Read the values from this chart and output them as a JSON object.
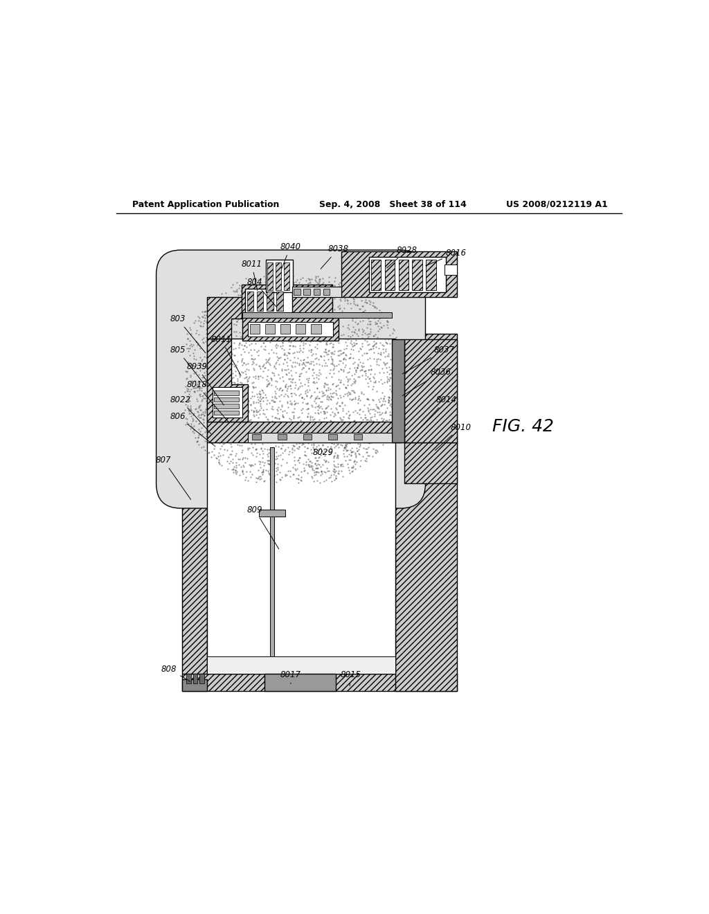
{
  "background_color": "#ffffff",
  "header_left": "Patent Application Publication",
  "header_mid": "Sep. 4, 2008   Sheet 38 of 114",
  "header_right": "US 2008/0212119 A1",
  "fig_label": "FIG. 42",
  "annotations": [
    [
      "8016",
      [
        0.61,
        0.855
      ],
      [
        0.65,
        0.875
      ]
    ],
    [
      "8028",
      [
        0.54,
        0.85
      ],
      [
        0.56,
        0.88
      ]
    ],
    [
      "8038",
      [
        0.42,
        0.848
      ],
      [
        0.435,
        0.882
      ]
    ],
    [
      "8040",
      [
        0.35,
        0.848
      ],
      [
        0.348,
        0.886
      ]
    ],
    [
      "8011",
      [
        0.308,
        0.808
      ],
      [
        0.278,
        0.855
      ]
    ],
    [
      "804",
      [
        0.345,
        0.778
      ],
      [
        0.288,
        0.822
      ]
    ],
    [
      "803",
      [
        0.215,
        0.695
      ],
      [
        0.148,
        0.755
      ]
    ],
    [
      "8011",
      [
        0.278,
        0.655
      ],
      [
        0.222,
        0.718
      ]
    ],
    [
      "805",
      [
        0.215,
        0.635
      ],
      [
        0.148,
        0.698
      ]
    ],
    [
      "8039",
      [
        0.248,
        0.6
      ],
      [
        0.178,
        0.668
      ]
    ],
    [
      "8018",
      [
        0.258,
        0.568
      ],
      [
        0.178,
        0.635
      ]
    ],
    [
      "8022",
      [
        0.225,
        0.548
      ],
      [
        0.148,
        0.608
      ]
    ],
    [
      "806",
      [
        0.23,
        0.528
      ],
      [
        0.148,
        0.578
      ]
    ],
    [
      "807",
      [
        0.188,
        0.428
      ],
      [
        0.122,
        0.498
      ]
    ],
    [
      "808",
      [
        0.188,
        0.098
      ],
      [
        0.132,
        0.118
      ]
    ],
    [
      "809",
      [
        0.348,
        0.338
      ],
      [
        0.288,
        0.408
      ]
    ],
    [
      "8017",
      [
        0.368,
        0.092
      ],
      [
        0.348,
        0.108
      ]
    ],
    [
      "8015",
      [
        0.475,
        0.088
      ],
      [
        0.458,
        0.108
      ]
    ],
    [
      "8029",
      [
        0.415,
        0.498
      ],
      [
        0.408,
        0.512
      ]
    ],
    [
      "8010",
      [
        0.628,
        0.518
      ],
      [
        0.658,
        0.558
      ]
    ],
    [
      "8014",
      [
        0.588,
        0.545
      ],
      [
        0.632,
        0.608
      ]
    ],
    [
      "8036",
      [
        0.568,
        0.618
      ],
      [
        0.622,
        0.658
      ]
    ],
    [
      "8037",
      [
        0.568,
        0.658
      ],
      [
        0.628,
        0.698
      ]
    ]
  ]
}
